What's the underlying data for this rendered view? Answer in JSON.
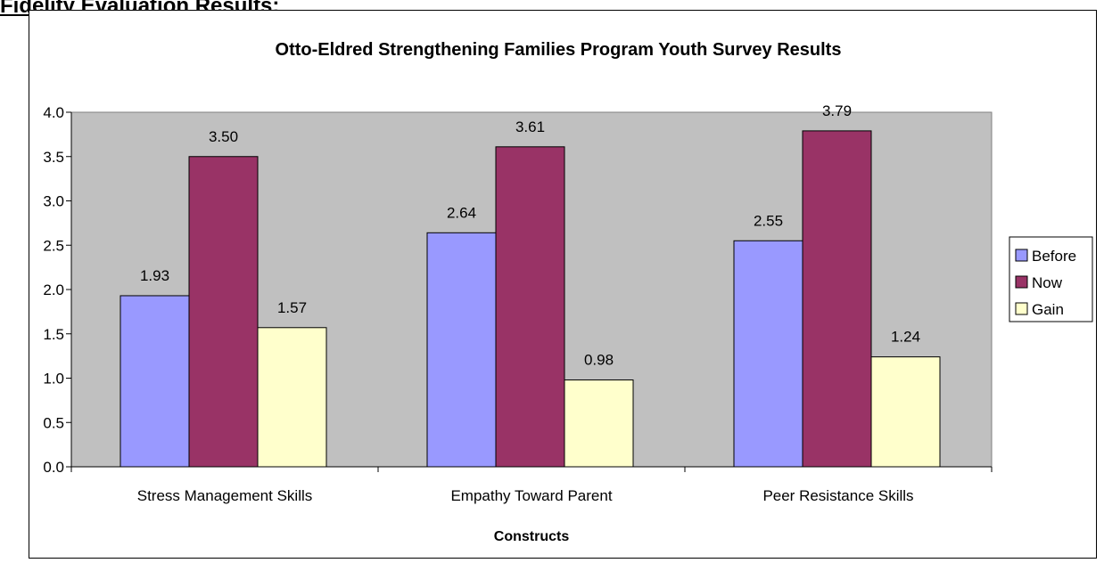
{
  "page": {
    "heading": "Fidelity Evaluation Results:"
  },
  "chart_data": {
    "type": "bar",
    "title": "Otto-Eldred Strengthening Families Program Youth Survey Results",
    "xlabel": "Constructs",
    "ylabel": "",
    "categories": [
      "Stress Management Skills",
      "Empathy Toward Parent",
      "Peer Resistance Skills"
    ],
    "series": [
      {
        "name": "Before",
        "values": [
          1.93,
          2.64,
          2.55
        ],
        "color": "#9999ff"
      },
      {
        "name": "Now",
        "values": [
          3.5,
          3.61,
          3.79
        ],
        "color": "#993366"
      },
      {
        "name": "Gain",
        "values": [
          1.57,
          0.98,
          1.24
        ],
        "color": "#ffffcc"
      }
    ],
    "data_labels": [
      [
        "1.93",
        "2.64",
        "2.55"
      ],
      [
        "3.50",
        "3.61",
        "3.79"
      ],
      [
        "1.57",
        "0.98",
        "1.24"
      ]
    ],
    "ylim": [
      0,
      4
    ],
    "yticks": [
      "0.0",
      "0.5",
      "1.0",
      "1.5",
      "2.0",
      "2.5",
      "3.0",
      "3.5",
      "4.0"
    ],
    "grid": false,
    "plot_background": "#c0c0c0",
    "legend_position": "right"
  }
}
